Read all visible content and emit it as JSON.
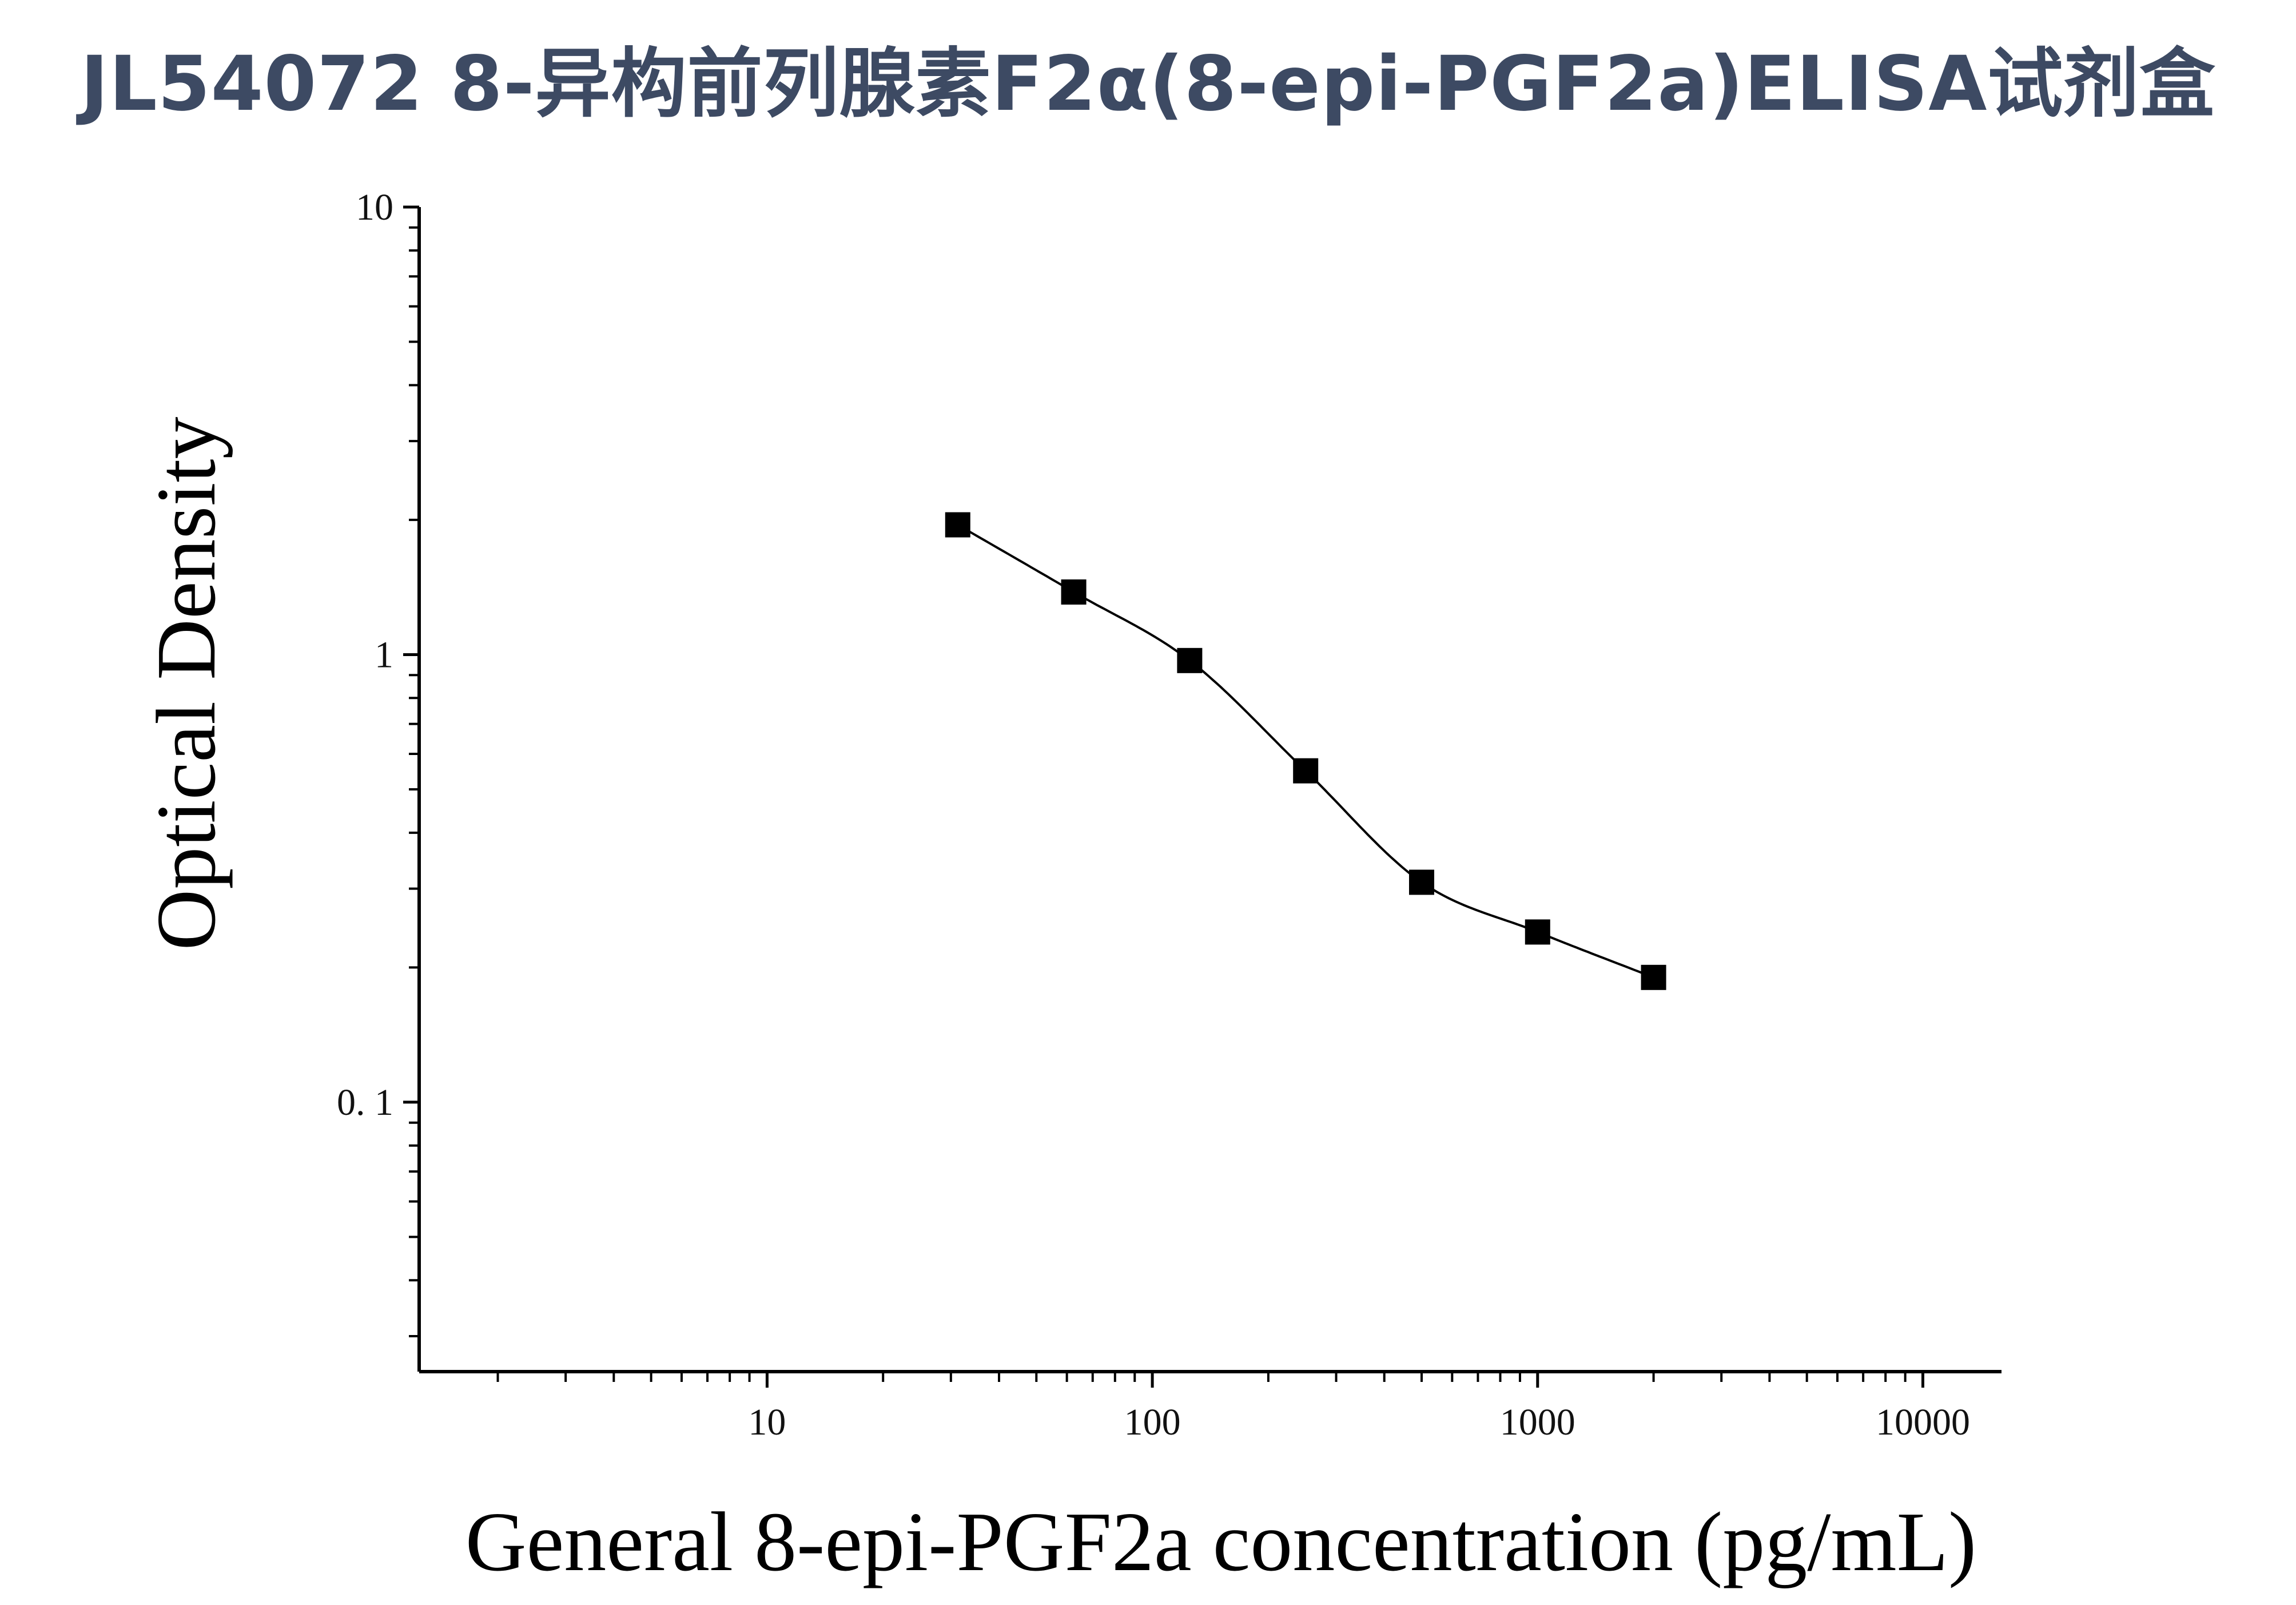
{
  "title": "JL54072 8-异构前列腺素F2α(8-epi-PGF2a)ELISA试剂盒",
  "chart_data": {
    "type": "scatter",
    "title": "JL54072 8-异构前列腺素F2α(8-epi-PGF2a)ELISA试剂盒",
    "xlabel": "General 8-epi-PGF2a concentration (pg/mL)",
    "ylabel": "Optical Density",
    "x_scale": "log",
    "y_scale": "log",
    "xlim": [
      1.25,
      16000
    ],
    "ylim": [
      0.025,
      10
    ],
    "x_ticks": [
      {
        "value": 10,
        "label": "10"
      },
      {
        "value": 100,
        "label": "100"
      },
      {
        "value": 1000,
        "label": "1000"
      },
      {
        "value": 10000,
        "label": "10000"
      }
    ],
    "y_ticks": [
      {
        "value": 10,
        "label": "10"
      },
      {
        "value": 1,
        "label": "1"
      },
      {
        "value": 0.1,
        "label": "0. 1"
      }
    ],
    "grid": false,
    "series": [
      {
        "marker": "square",
        "color": "#000000",
        "fit_line": true,
        "x": [
          31.25,
          62.5,
          125,
          250,
          500,
          1000,
          2000
        ],
        "y": [
          1.95,
          1.38,
          0.97,
          0.55,
          0.31,
          0.24,
          0.19
        ]
      }
    ]
  }
}
